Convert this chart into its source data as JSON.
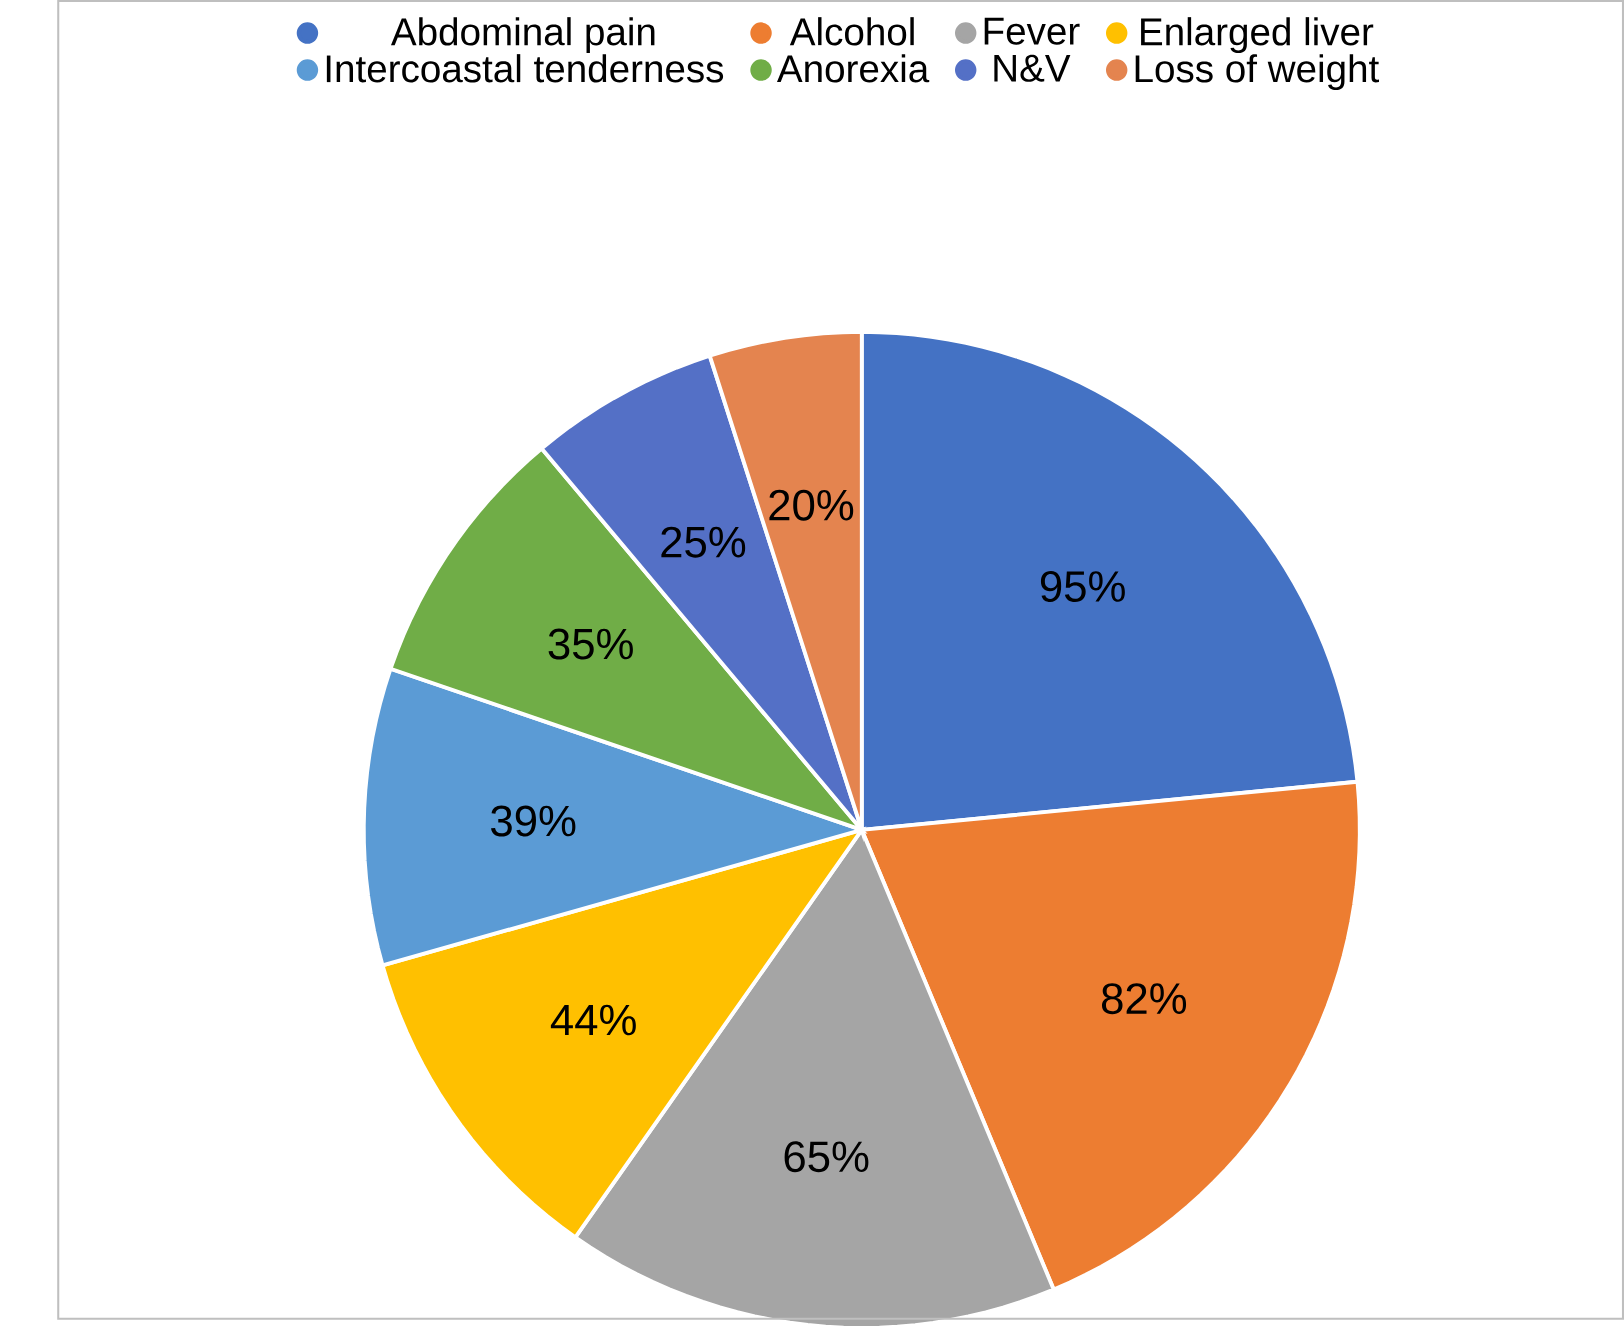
{
  "chart_data": {
    "type": "pie",
    "categories": [
      "Abdominal pain",
      "Alcohol",
      "Fever",
      "Enlarged liver",
      "Intercoastal tenderness",
      "Anorexia",
      "N&V",
      "Loss of weight"
    ],
    "values": [
      95,
      82,
      65,
      44,
      39,
      35,
      25,
      20
    ],
    "value_labels": [
      "95%",
      "82%",
      "65%",
      "44%",
      "39%",
      "35%",
      "25%",
      "20%"
    ],
    "colors": [
      "#4472c4",
      "#ed7d31",
      "#a5a5a5",
      "#ffc000",
      "#5b9bd5",
      "#70ad47",
      "#5470c6",
      "#e4844f"
    ],
    "legend": "top"
  }
}
